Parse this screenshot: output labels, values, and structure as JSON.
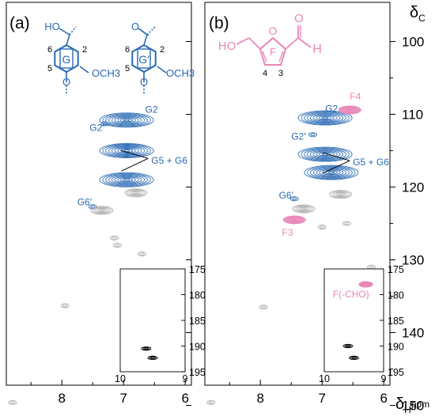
{
  "colors": {
    "blue": "#2a6ab4",
    "pink": "#e887b8",
    "gray": "#a9a9a9",
    "black": "#000000"
  },
  "chart_data": [
    {
      "panel": "(a)",
      "type": "heatmap",
      "xlabel": "",
      "ylabel": "",
      "xlim": [
        8.9,
        5.9
      ],
      "ylim": [
        150,
        95
      ],
      "xticks": [
        "8",
        "7",
        "6"
      ],
      "x_tick_values": [
        8,
        7,
        6
      ],
      "y_tick_values": [
        100,
        110,
        120,
        130,
        140,
        150
      ],
      "structure": {
        "labels": [
          {
            "text": "HO",
            "role": "substituent"
          },
          {
            "text": "G",
            "role": "ring"
          },
          {
            "text": "OCH3",
            "role": "substituent"
          },
          {
            "text": "6",
            "role": "position"
          },
          {
            "text": "5",
            "role": "position"
          },
          {
            "text": "2",
            "role": "position"
          },
          {
            "text": "G′",
            "role": "ring"
          },
          {
            "text": "OCH3",
            "role": "substituent"
          },
          {
            "text": "6",
            "role": "position"
          },
          {
            "text": "5",
            "role": "position"
          },
          {
            "text": "2",
            "role": "position"
          }
        ]
      },
      "peaks": [
        {
          "label": "G2′",
          "x": 7.3,
          "y": 111.3,
          "color": "blue",
          "size": "small"
        },
        {
          "label": "G2",
          "x": 6.95,
          "y": 110.8,
          "color": "blue",
          "size": "large"
        },
        {
          "label": "",
          "x": 6.95,
          "y": 115.0,
          "color": "blue",
          "size": "large"
        },
        {
          "label": "",
          "x": 6.95,
          "y": 119.0,
          "color": "blue",
          "size": "large"
        },
        {
          "label": "",
          "x": 6.8,
          "y": 120.8,
          "color": "gray",
          "size": "medium"
        },
        {
          "label": "G6′",
          "x": 7.5,
          "y": 122.7,
          "color": "blue",
          "size": "small"
        },
        {
          "label": "",
          "x": 7.35,
          "y": 123.2,
          "color": "gray",
          "size": "medium"
        },
        {
          "label": "",
          "x": 7.15,
          "y": 127.0,
          "color": "gray",
          "size": "small"
        },
        {
          "label": "",
          "x": 7.1,
          "y": 128.0,
          "color": "gray",
          "size": "small"
        },
        {
          "label": "",
          "x": 6.7,
          "y": 129.2,
          "color": "gray",
          "size": "small"
        },
        {
          "label": "",
          "x": 7.95,
          "y": 136.3,
          "color": "gray",
          "size": "small"
        },
        {
          "label": "",
          "x": 8.8,
          "y": 149.6,
          "color": "gray",
          "size": "small"
        }
      ],
      "annotations": [
        {
          "text": "G2",
          "x": 6.65,
          "y": 109.8
        },
        {
          "text": "G2′",
          "x": 7.55,
          "y": 112.3
        },
        {
          "text": "G6′",
          "x": 7.75,
          "y": 122.5
        },
        {
          "text": "G5 + G6",
          "x": 6.55,
          "y": 116.8
        }
      ],
      "inset": {
        "xlim": [
          10,
          9
        ],
        "ylim": [
          175,
          195
        ],
        "xticks": [
          10,
          9
        ],
        "yticks": [
          175,
          180,
          185,
          190,
          195
        ],
        "label": "",
        "peaks": [
          {
            "x": 9.6,
            "y": 190.5,
            "color": "black"
          },
          {
            "x": 9.5,
            "y": 192.3,
            "color": "black"
          }
        ]
      }
    },
    {
      "panel": "(b)",
      "type": "heatmap",
      "xlabel": "δHppm",
      "ylabel": "δC",
      "xlim": [
        8.9,
        5.9
      ],
      "ylim": [
        150,
        95
      ],
      "xticks": [
        "8",
        "7",
        "6"
      ],
      "x_tick_values": [
        8,
        7,
        6
      ],
      "yticks": [
        "100",
        "110",
        "120",
        "130",
        "140",
        "150"
      ],
      "y_tick_values": [
        100,
        110,
        120,
        130,
        140,
        150
      ],
      "structure": {
        "labels": [
          {
            "text": "HO",
            "role": "substituent"
          },
          {
            "text": "F",
            "role": "ring"
          },
          {
            "text": "O",
            "role": "atom"
          },
          {
            "text": "H",
            "role": "atom"
          },
          {
            "text": "4",
            "role": "position"
          },
          {
            "text": "3",
            "role": "position"
          }
        ]
      },
      "peaks": [
        {
          "label": "G2′",
          "x": 7.15,
          "y": 112.8,
          "color": "blue",
          "size": "small"
        },
        {
          "label": "G2",
          "x": 6.95,
          "y": 110.5,
          "color": "blue",
          "size": "large"
        },
        {
          "label": "",
          "x": 6.95,
          "y": 115.5,
          "color": "blue",
          "size": "large"
        },
        {
          "label": "",
          "x": 6.85,
          "y": 118.0,
          "color": "blue",
          "size": "large"
        },
        {
          "label": "F4",
          "x": 6.55,
          "y": 109.4,
          "color": "pink",
          "size": "medium"
        },
        {
          "label": "",
          "x": 6.7,
          "y": 121.0,
          "color": "gray",
          "size": "medium"
        },
        {
          "label": "G6′",
          "x": 7.45,
          "y": 121.6,
          "color": "blue",
          "size": "small"
        },
        {
          "label": "",
          "x": 7.3,
          "y": 123.0,
          "color": "gray",
          "size": "medium"
        },
        {
          "label": "F3",
          "x": 7.45,
          "y": 124.5,
          "color": "pink",
          "size": "medium"
        },
        {
          "label": "",
          "x": 7.0,
          "y": 125.5,
          "color": "gray",
          "size": "small"
        },
        {
          "label": "",
          "x": 6.6,
          "y": 125.0,
          "color": "gray",
          "size": "small"
        },
        {
          "label": "",
          "x": 6.2,
          "y": 131.0,
          "color": "gray",
          "size": "small"
        },
        {
          "label": "",
          "x": 7.95,
          "y": 136.5,
          "color": "gray",
          "size": "small"
        },
        {
          "label": "",
          "x": 8.8,
          "y": 149.6,
          "color": "gray",
          "size": "small"
        }
      ],
      "annotations": [
        {
          "text": "G2",
          "x": 6.95,
          "y": 109.7
        },
        {
          "text": "F4",
          "x": 6.55,
          "y": 108.0
        },
        {
          "text": "G2′",
          "x": 7.5,
          "y": 113.5
        },
        {
          "text": "G5 + G6",
          "x": 6.5,
          "y": 117.0
        },
        {
          "text": "G6′",
          "x": 7.7,
          "y": 121.6
        },
        {
          "text": "F3",
          "x": 7.65,
          "y": 126.7
        }
      ],
      "inset": {
        "xlim": [
          10,
          9
        ],
        "ylim": [
          175,
          195
        ],
        "xticks": [
          10,
          9
        ],
        "yticks": [
          175,
          180,
          185,
          190,
          195
        ],
        "label": "F(-CHO)",
        "peaks": [
          {
            "x": 9.3,
            "y": 178.0,
            "color": "pink"
          },
          {
            "x": 9.6,
            "y": 190.0,
            "color": "black"
          },
          {
            "x": 9.5,
            "y": 192.3,
            "color": "black"
          }
        ]
      }
    }
  ]
}
